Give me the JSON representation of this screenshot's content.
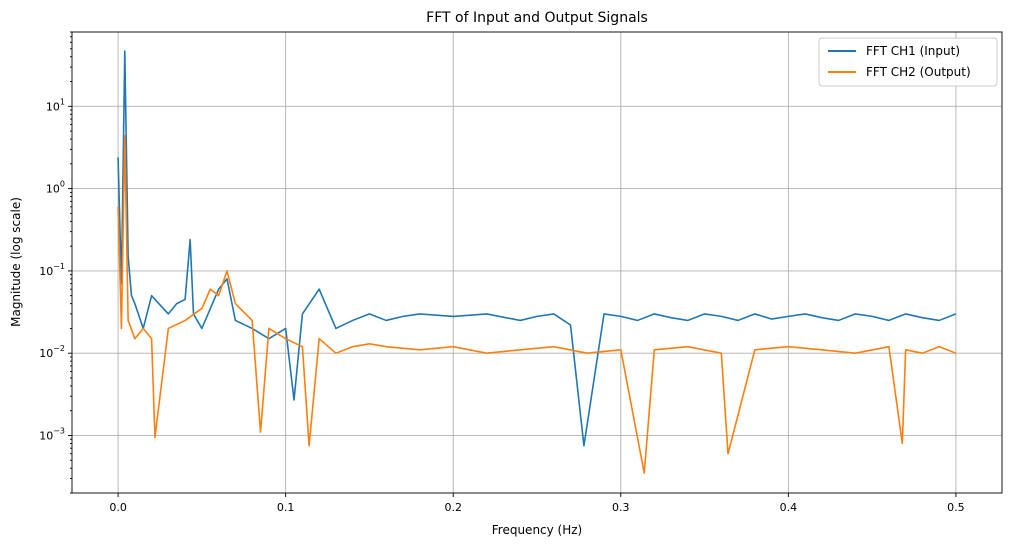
{
  "chart_data": {
    "type": "line",
    "title": "FFT of Input and Output Signals",
    "xlabel": "Frequency (Hz)",
    "ylabel": "Magnitude (log scale)",
    "xlim": [
      -0.0275,
      0.5275
    ],
    "ylim": [
      0.0002,
      80
    ],
    "yscale": "log",
    "grid": true,
    "legend_position": "top-right",
    "x_ticks": [
      {
        "value": 0.0,
        "label": "0.0"
      },
      {
        "value": 0.1,
        "label": "0.1"
      },
      {
        "value": 0.2,
        "label": "0.2"
      },
      {
        "value": 0.3,
        "label": "0.3"
      },
      {
        "value": 0.4,
        "label": "0.4"
      },
      {
        "value": 0.5,
        "label": "0.5"
      }
    ],
    "y_ticks": [
      {
        "value": 0.001,
        "base": "10",
        "exp": "−3"
      },
      {
        "value": 0.01,
        "base": "10",
        "exp": "−2"
      },
      {
        "value": 0.1,
        "base": "10",
        "exp": "−1"
      },
      {
        "value": 1,
        "base": "10",
        "exp": "0"
      },
      {
        "value": 10,
        "base": "10",
        "exp": "1"
      }
    ],
    "series": [
      {
        "name": "FFT CH1 (Input)",
        "color": "#1f77b4",
        "x": [
          0.0,
          0.002,
          0.004,
          0.006,
          0.008,
          0.01,
          0.015,
          0.02,
          0.03,
          0.035,
          0.04,
          0.043,
          0.045,
          0.05,
          0.06,
          0.065,
          0.07,
          0.08,
          0.09,
          0.1,
          0.105,
          0.11,
          0.12,
          0.13,
          0.14,
          0.15,
          0.16,
          0.17,
          0.18,
          0.2,
          0.22,
          0.24,
          0.25,
          0.26,
          0.27,
          0.278,
          0.29,
          0.3,
          0.31,
          0.32,
          0.33,
          0.34,
          0.35,
          0.36,
          0.37,
          0.38,
          0.39,
          0.4,
          0.41,
          0.42,
          0.43,
          0.44,
          0.45,
          0.46,
          0.47,
          0.48,
          0.49,
          0.5
        ],
        "y": [
          2.4,
          0.07,
          47,
          0.15,
          0.05,
          0.04,
          0.02,
          0.05,
          0.03,
          0.04,
          0.045,
          0.24,
          0.03,
          0.02,
          0.06,
          0.08,
          0.025,
          0.02,
          0.015,
          0.02,
          0.0027,
          0.03,
          0.06,
          0.02,
          0.025,
          0.03,
          0.025,
          0.028,
          0.03,
          0.028,
          0.03,
          0.025,
          0.028,
          0.03,
          0.022,
          0.00075,
          0.03,
          0.028,
          0.025,
          0.03,
          0.027,
          0.025,
          0.03,
          0.028,
          0.025,
          0.03,
          0.026,
          0.028,
          0.03,
          0.027,
          0.025,
          0.03,
          0.028,
          0.025,
          0.03,
          0.027,
          0.025,
          0.03
        ]
      },
      {
        "name": "FFT CH2 (Output)",
        "color": "#ff7f0e",
        "x": [
          0.0,
          0.002,
          0.004,
          0.006,
          0.01,
          0.015,
          0.02,
          0.022,
          0.03,
          0.04,
          0.05,
          0.055,
          0.06,
          0.065,
          0.07,
          0.08,
          0.085,
          0.09,
          0.1,
          0.11,
          0.114,
          0.12,
          0.13,
          0.14,
          0.15,
          0.16,
          0.18,
          0.2,
          0.22,
          0.24,
          0.26,
          0.28,
          0.3,
          0.314,
          0.32,
          0.34,
          0.36,
          0.364,
          0.38,
          0.4,
          0.42,
          0.44,
          0.46,
          0.468,
          0.47,
          0.48,
          0.49,
          0.5
        ],
        "y": [
          0.6,
          0.02,
          4.4,
          0.025,
          0.015,
          0.02,
          0.015,
          0.00095,
          0.02,
          0.025,
          0.035,
          0.06,
          0.05,
          0.1,
          0.04,
          0.025,
          0.0011,
          0.02,
          0.015,
          0.012,
          0.00075,
          0.015,
          0.01,
          0.012,
          0.013,
          0.012,
          0.011,
          0.012,
          0.01,
          0.011,
          0.012,
          0.01,
          0.011,
          0.00035,
          0.011,
          0.012,
          0.01,
          0.0006,
          0.011,
          0.012,
          0.011,
          0.01,
          0.012,
          0.0008,
          0.011,
          0.01,
          0.012,
          0.01
        ]
      }
    ]
  }
}
